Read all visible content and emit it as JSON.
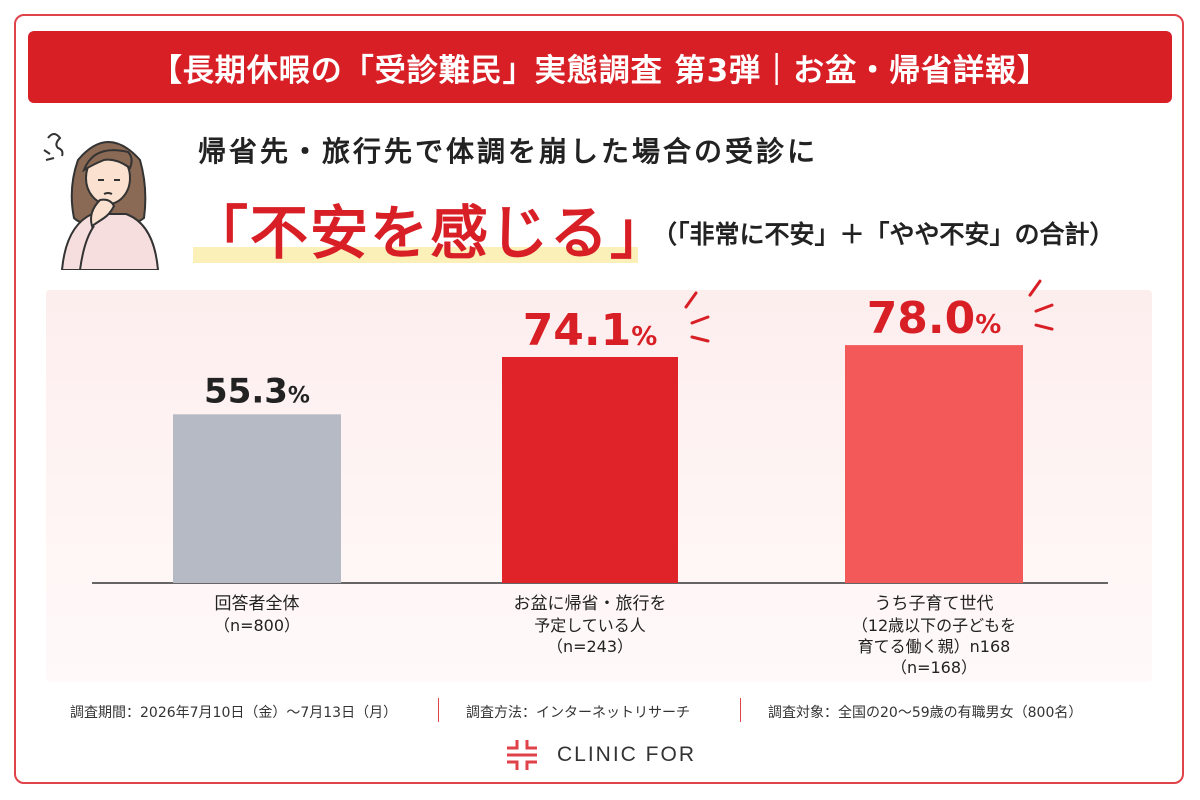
{
  "banner": {
    "title": "【長期休暇の「受診難民」実態調査 第3弾｜お盆・帰省詳報】"
  },
  "header": {
    "subtitle": "帰省先・旅行先で体調を崩した場合の受診に",
    "headline": "「不安を感じる」",
    "note": "（「非常に不安」＋「やや不安」の合計）"
  },
  "chart_data": {
    "type": "bar",
    "unit": "%",
    "ylim": [
      0,
      100
    ],
    "categories": [
      {
        "lines": [
          "回答者全体"
        ],
        "n": "（n=800）"
      },
      {
        "lines": [
          "お盆に帰省・旅行を",
          "予定している人"
        ],
        "n": "（n=243）"
      },
      {
        "lines": [
          "うち子育て世代",
          "（12歳以下の子どもを",
          "育てる働く親）n168"
        ],
        "n": "（n=168）"
      }
    ],
    "values": [
      55.3,
      74.1,
      78.0
    ],
    "value_labels": [
      "55.3",
      "74.1",
      "78.0"
    ],
    "colors": [
      "#b6bac4",
      "#e02328",
      "#f4595a"
    ],
    "value_colors": [
      "#222222",
      "#d81f26",
      "#d81f26"
    ]
  },
  "footer": {
    "period": "調査期間：2026年7月10日（金）〜7月13日（月）",
    "method": "調査方法：インターネットリサーチ",
    "target": "調査対象：全国の20〜59歳の有職男女（800名）"
  },
  "brand": {
    "name": "CLINIC FOR",
    "color": "#e0424a"
  },
  "icons": {
    "illustration": "thinking-woman-icon",
    "logo": "clinic-for-logo-icon",
    "emphasis": "emphasis-lines-icon"
  }
}
